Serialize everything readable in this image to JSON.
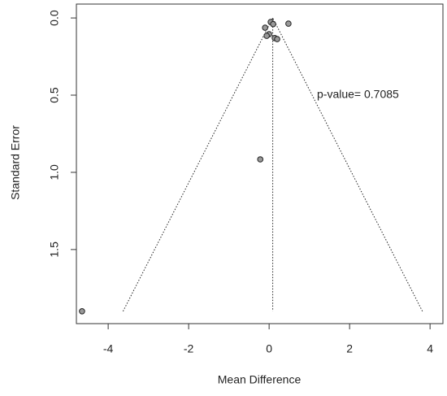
{
  "chart_data": {
    "type": "scatter",
    "x_label": "Mean Difference",
    "y_label": "Standard Error",
    "annotation": "p-value= 0.7085",
    "x": [
      0.48,
      0.04,
      0.1,
      -0.1,
      0.0,
      -0.06,
      0.14,
      0.2,
      -0.22,
      -4.65
    ],
    "values": [
      0.037,
      0.026,
      0.04,
      0.063,
      0.105,
      0.116,
      0.13,
      0.137,
      0.916,
      1.9
    ],
    "color": "#999999",
    "lines": [
      {
        "x": [
          -3.63,
          0.09,
          3.81
        ],
        "y": [
          1.9,
          0,
          1.9
        ]
      },
      {
        "x": [
          0.09,
          0.09
        ],
        "y": [
          0,
          1.9
        ]
      }
    ],
    "xlim": [
      -4.79,
      4.32
    ],
    "ylim": [
      -0.09,
      1.98
    ],
    "y_reversed": true,
    "xticks": [
      -4,
      -2,
      0,
      2,
      4
    ],
    "yticks": [
      {
        "value": 0,
        "label": "0.0"
      },
      0.5,
      {
        "value": 1,
        "label": "1.0"
      },
      1.5
    ],
    "grid": false
  }
}
